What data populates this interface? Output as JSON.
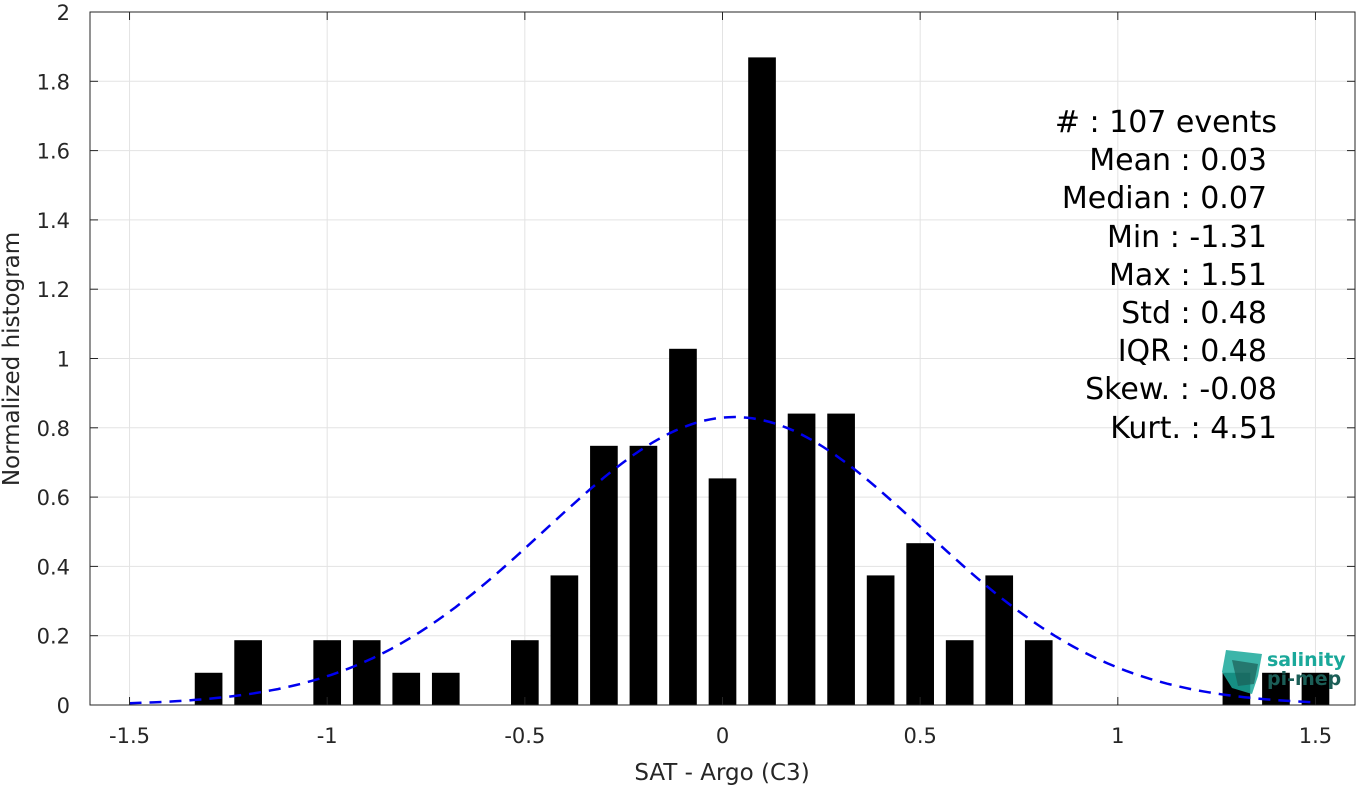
{
  "chart_data": {
    "type": "bar",
    "xlabel": "SAT - Argo (C3)",
    "ylabel": "Normalized histogram",
    "xlim": [
      -1.6,
      1.6
    ],
    "ylim": [
      0,
      2
    ],
    "xticks": [
      "-1.5",
      "-1",
      "-0.5",
      "0",
      "0.5",
      "1",
      "1.5"
    ],
    "xtick_values": [
      -1.5,
      -1,
      -0.5,
      0,
      0.5,
      1,
      1.5
    ],
    "yticks": [
      "0",
      "0.2",
      "0.4",
      "0.6",
      "0.8",
      "1",
      "1.2",
      "1.4",
      "1.6",
      "1.8",
      "2"
    ],
    "ytick_values": [
      0,
      0.2,
      0.4,
      0.6,
      0.8,
      1.0,
      1.2,
      1.4,
      1.6,
      1.8,
      2.0
    ],
    "grid": true,
    "bar_color": "#000000",
    "bar_width": 0.07,
    "bars": {
      "x": [
        -1.3,
        -1.2,
        -1.0,
        -0.9,
        -0.8,
        -0.7,
        -0.5,
        -0.4,
        -0.3,
        -0.2,
        -0.1,
        0.0,
        0.1,
        0.2,
        0.3,
        0.4,
        0.5,
        0.6,
        0.7,
        0.8,
        1.3,
        1.4,
        1.5
      ],
      "values": [
        0.093,
        0.187,
        0.187,
        0.187,
        0.093,
        0.093,
        0.187,
        0.374,
        0.748,
        0.748,
        1.028,
        0.654,
        1.869,
        0.841,
        0.841,
        0.374,
        0.467,
        0.187,
        0.374,
        0.187,
        0.093,
        0.093,
        0.093
      ]
    },
    "fit_curve": {
      "style": "dashed",
      "color": "#0000ee",
      "x_range": [
        -1.5,
        1.5
      ],
      "mean": 0.03,
      "std": 0.48
    },
    "stats": [
      "#  : 107 events",
      "Mean : 0.03",
      "Median : 0.07",
      "Min : -1.31",
      "Max : 1.51",
      "Std : 0.48",
      "IQR : 0.48",
      "Skew. : -0.08",
      "Kurt. : 4.51"
    ]
  },
  "logo": {
    "line1": "salinity",
    "line2": "pi-mep",
    "color1": "#1aa89a",
    "color2": "#1b5e57"
  }
}
